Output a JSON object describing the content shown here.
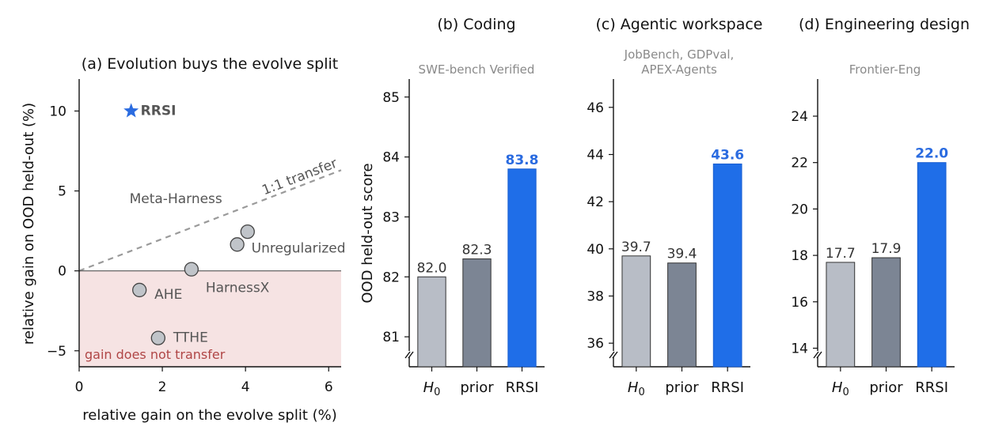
{
  "chart_data": [
    {
      "type": "scatter",
      "title": "(a) Evolution buys the evolve split",
      "xlabel": "relative gain on the evolve split (%)",
      "ylabel": "relative gain on OOD held-out (%)",
      "xlim": [
        0,
        6.3
      ],
      "ylim": [
        -6,
        12
      ],
      "xticks": [
        0,
        2,
        4,
        6
      ],
      "yticks": [
        -5,
        0,
        5,
        10
      ],
      "points": [
        {
          "label": "RRSI",
          "x": 1.25,
          "y": 10.0,
          "marker": "star",
          "highlight": true
        },
        {
          "label": "Meta-Harness",
          "x": 4.05,
          "y": 2.45
        },
        {
          "label": "Unregularized",
          "x": 3.8,
          "y": 1.65
        },
        {
          "label": "HarnessX",
          "x": 2.7,
          "y": 0.1
        },
        {
          "label": "AHE",
          "x": 1.45,
          "y": -1.2
        },
        {
          "label": "TTHE",
          "x": 1.9,
          "y": -4.2
        }
      ],
      "reference_line": {
        "label": "1:1 transfer",
        "slope": 1,
        "style": "dashed"
      },
      "shaded_region": {
        "label": "gain does not transfer",
        "y_range": [
          -6,
          0
        ],
        "color": "#f6e3e3"
      },
      "colors": {
        "point": "#c0c4c9",
        "highlight": "#2a6be0",
        "region_text": "#b04646",
        "reference": "#9a9a9a"
      }
    },
    {
      "type": "bar",
      "title": "(b) Coding",
      "subtitle": "SWE-bench Verified",
      "ylabel": "OOD held-out score",
      "categories": [
        "H0",
        "prior",
        "RRSI"
      ],
      "values": [
        82.0,
        82.3,
        83.8
      ],
      "value_labels": [
        "82.0",
        "82.3",
        "83.8"
      ],
      "ylim": [
        80.5,
        85.3
      ],
      "yticks": [
        81,
        82,
        83,
        84,
        85
      ],
      "axis_break": true
    },
    {
      "type": "bar",
      "title": "(c) Agentic workspace",
      "subtitle": [
        "JobBench, GDPval,",
        "APEX-Agents"
      ],
      "categories": [
        "H0",
        "prior",
        "RRSI"
      ],
      "values": [
        39.7,
        39.4,
        43.6
      ],
      "value_labels": [
        "39.7",
        "39.4",
        "43.6"
      ],
      "ylim": [
        35.0,
        47.2
      ],
      "yticks": [
        36,
        38,
        40,
        42,
        44,
        46
      ],
      "axis_break": true
    },
    {
      "type": "bar",
      "title": "(d) Engineering design",
      "subtitle": "Frontier-Eng",
      "categories": [
        "H0",
        "prior",
        "RRSI"
      ],
      "values": [
        17.7,
        17.9,
        22.0
      ],
      "value_labels": [
        "17.7",
        "17.9",
        "22.0"
      ],
      "ylim": [
        13.2,
        25.6
      ],
      "yticks": [
        14,
        16,
        18,
        20,
        22,
        24
      ],
      "axis_break": true
    }
  ],
  "bar_colors": [
    "#b8bdc6",
    "#7c8594",
    "#1f6ee8"
  ]
}
